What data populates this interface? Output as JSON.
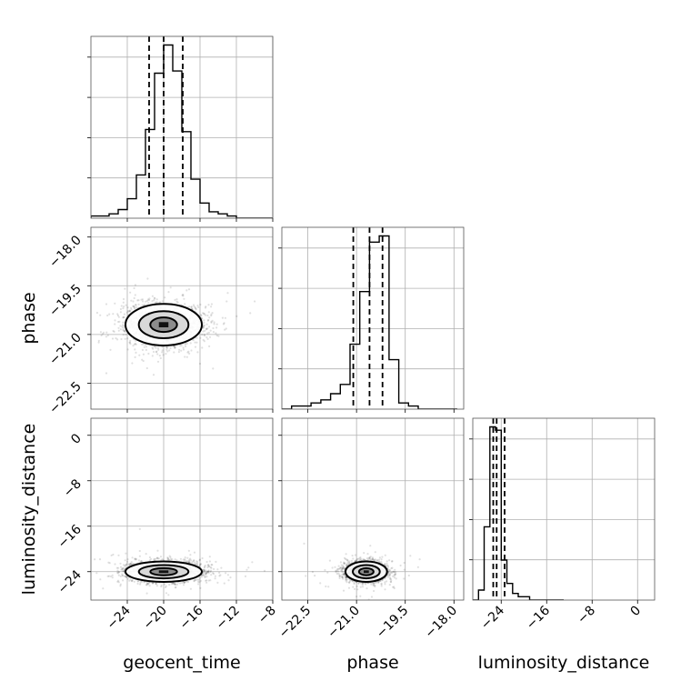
{
  "chart_data": {
    "type": "corner",
    "grid": true,
    "parameters": [
      {
        "name": "geocent_time",
        "axis_label": "geocent_time",
        "range": [
          -28,
          -8
        ],
        "ticks": [
          -24,
          -20,
          -16,
          -12,
          -8
        ],
        "tick_labels": [
          "−24",
          "−20",
          "−16",
          "−12",
          "−8"
        ],
        "center": -20,
        "sigma": 2.1
      },
      {
        "name": "phase",
        "axis_label": "phase",
        "range": [
          -23.3,
          -17.7
        ],
        "ticks": [
          -22.5,
          -21.0,
          -19.5,
          -18.0
        ],
        "tick_labels": [
          "−22.5",
          "−21.0",
          "−19.5",
          "−18.0"
        ],
        "center": -20.7,
        "sigma": 0.32
      },
      {
        "name": "luminosity_distance",
        "axis_label": "luminosity_distance",
        "range": [
          -29,
          3
        ],
        "ticks": [
          -24,
          -16,
          -8,
          0
        ],
        "tick_labels": [
          "−24",
          "−16",
          "−8",
          "0"
        ],
        "center": -24,
        "sigma": 0.9
      }
    ],
    "marginal_histograms": [
      {
        "parameter": "geocent_time",
        "bin_edges": [
          -28,
          -27,
          -26,
          -25,
          -24,
          -23,
          -22,
          -21,
          -20,
          -19,
          -18,
          -17,
          -16,
          -15,
          -14,
          -13,
          -12,
          -11,
          -10,
          -9,
          -8
        ],
        "counts": [
          1,
          1,
          2,
          4,
          9,
          20,
          41,
          67,
          80,
          68,
          40,
          18,
          7,
          3,
          2,
          1,
          0,
          0,
          0,
          0
        ],
        "quantiles": [
          -21.6,
          -20.0,
          -17.9
        ]
      },
      {
        "parameter": "phase",
        "bin_edges": [
          -23.3,
          -23.0,
          -22.7,
          -22.4,
          -22.1,
          -21.8,
          -21.5,
          -21.2,
          -20.9,
          -20.6,
          -20.3,
          -20.0,
          -19.7,
          -19.4,
          -19.1,
          -18.8,
          -18.5,
          -18.2,
          -17.9
        ],
        "counts": [
          0,
          1,
          1,
          2,
          3,
          5,
          8,
          21,
          38,
          54,
          56,
          16,
          2,
          1,
          0,
          0,
          0,
          0
        ],
        "quantiles": [
          -21.1,
          -20.6,
          -20.2
        ]
      },
      {
        "parameter": "luminosity_distance",
        "bin_edges": [
          -29,
          -28,
          -27,
          -26,
          -25,
          -24,
          -23,
          -22,
          -21,
          -20,
          -19,
          -18,
          -17,
          -16,
          -15,
          -14,
          -13
        ],
        "counts": [
          0,
          3,
          22,
          52,
          51,
          12,
          5,
          2,
          1,
          1,
          0,
          0,
          0,
          0,
          0,
          0
        ],
        "quantiles": [
          -25.4,
          -24.8,
          -23.4
        ]
      }
    ],
    "joint_panels": [
      {
        "x": "geocent_time",
        "y": "phase",
        "contour_levels": 3
      },
      {
        "x": "geocent_time",
        "y": "luminosity_distance",
        "contour_levels": 3
      },
      {
        "x": "phase",
        "y": "luminosity_distance",
        "contour_levels": 3
      }
    ],
    "labels": {
      "xlabels": [
        "geocent_time",
        "phase",
        "luminosity_distance"
      ],
      "ylabels": [
        "phase",
        "luminosity_distance"
      ]
    }
  }
}
